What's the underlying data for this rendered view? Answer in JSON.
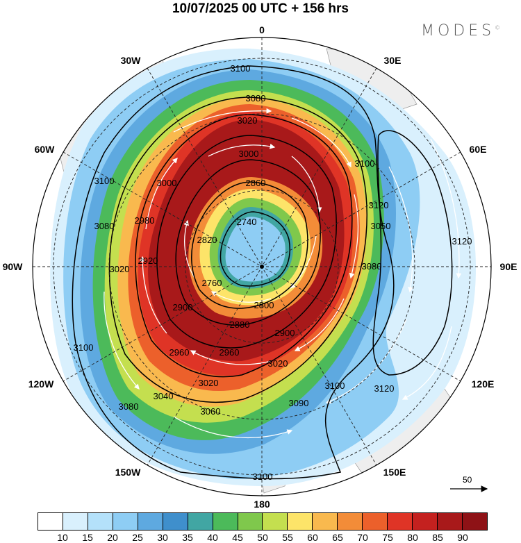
{
  "header": {
    "title": "10/07/2025  00 UTC  + 156 hrs",
    "logo_text": "MODES",
    "logo_mark": "©"
  },
  "map": {
    "projection": "south polar stereographic",
    "longitude_labels": {
      "top": "0",
      "bottom": "180",
      "left": "90W",
      "right": "90E",
      "upper_left": "30W",
      "upper_right": "30E",
      "mid_left_upper": "60W",
      "mid_right_upper": "60E",
      "mid_left_lower": "120W",
      "mid_right_lower": "120E",
      "lower_left": "150W",
      "lower_right": "150E"
    },
    "contour_labels": [
      "3100",
      "3080",
      "3020",
      "3040",
      "3000",
      "2860",
      "2740",
      "2820",
      "2760",
      "2800",
      "2880",
      "2900",
      "2960",
      "3060",
      "3050",
      "3120",
      "3090",
      "2920",
      "2980"
    ],
    "wind_scale_label": "50",
    "colors": {
      "background": "#ffffff",
      "land": "#f0f0f0",
      "contour": "#000000",
      "arrow": "#ffffff",
      "graticule": "#333333"
    }
  },
  "colorbar": {
    "labels": [
      "10",
      "15",
      "20",
      "25",
      "30",
      "35",
      "40",
      "45",
      "50",
      "55",
      "60",
      "65",
      "70",
      "75",
      "80",
      "85",
      "90"
    ],
    "colors": [
      "#ffffff",
      "#d9f0fd",
      "#b4e1fa",
      "#8ecdf4",
      "#5ea9e0",
      "#3f8fcc",
      "#41a6a3",
      "#4cba5a",
      "#7fc84c",
      "#c4df4f",
      "#fde469",
      "#f9b94e",
      "#f38c38",
      "#ec602b",
      "#df3426",
      "#c4211f",
      "#a8191a",
      "#8e1216"
    ]
  }
}
